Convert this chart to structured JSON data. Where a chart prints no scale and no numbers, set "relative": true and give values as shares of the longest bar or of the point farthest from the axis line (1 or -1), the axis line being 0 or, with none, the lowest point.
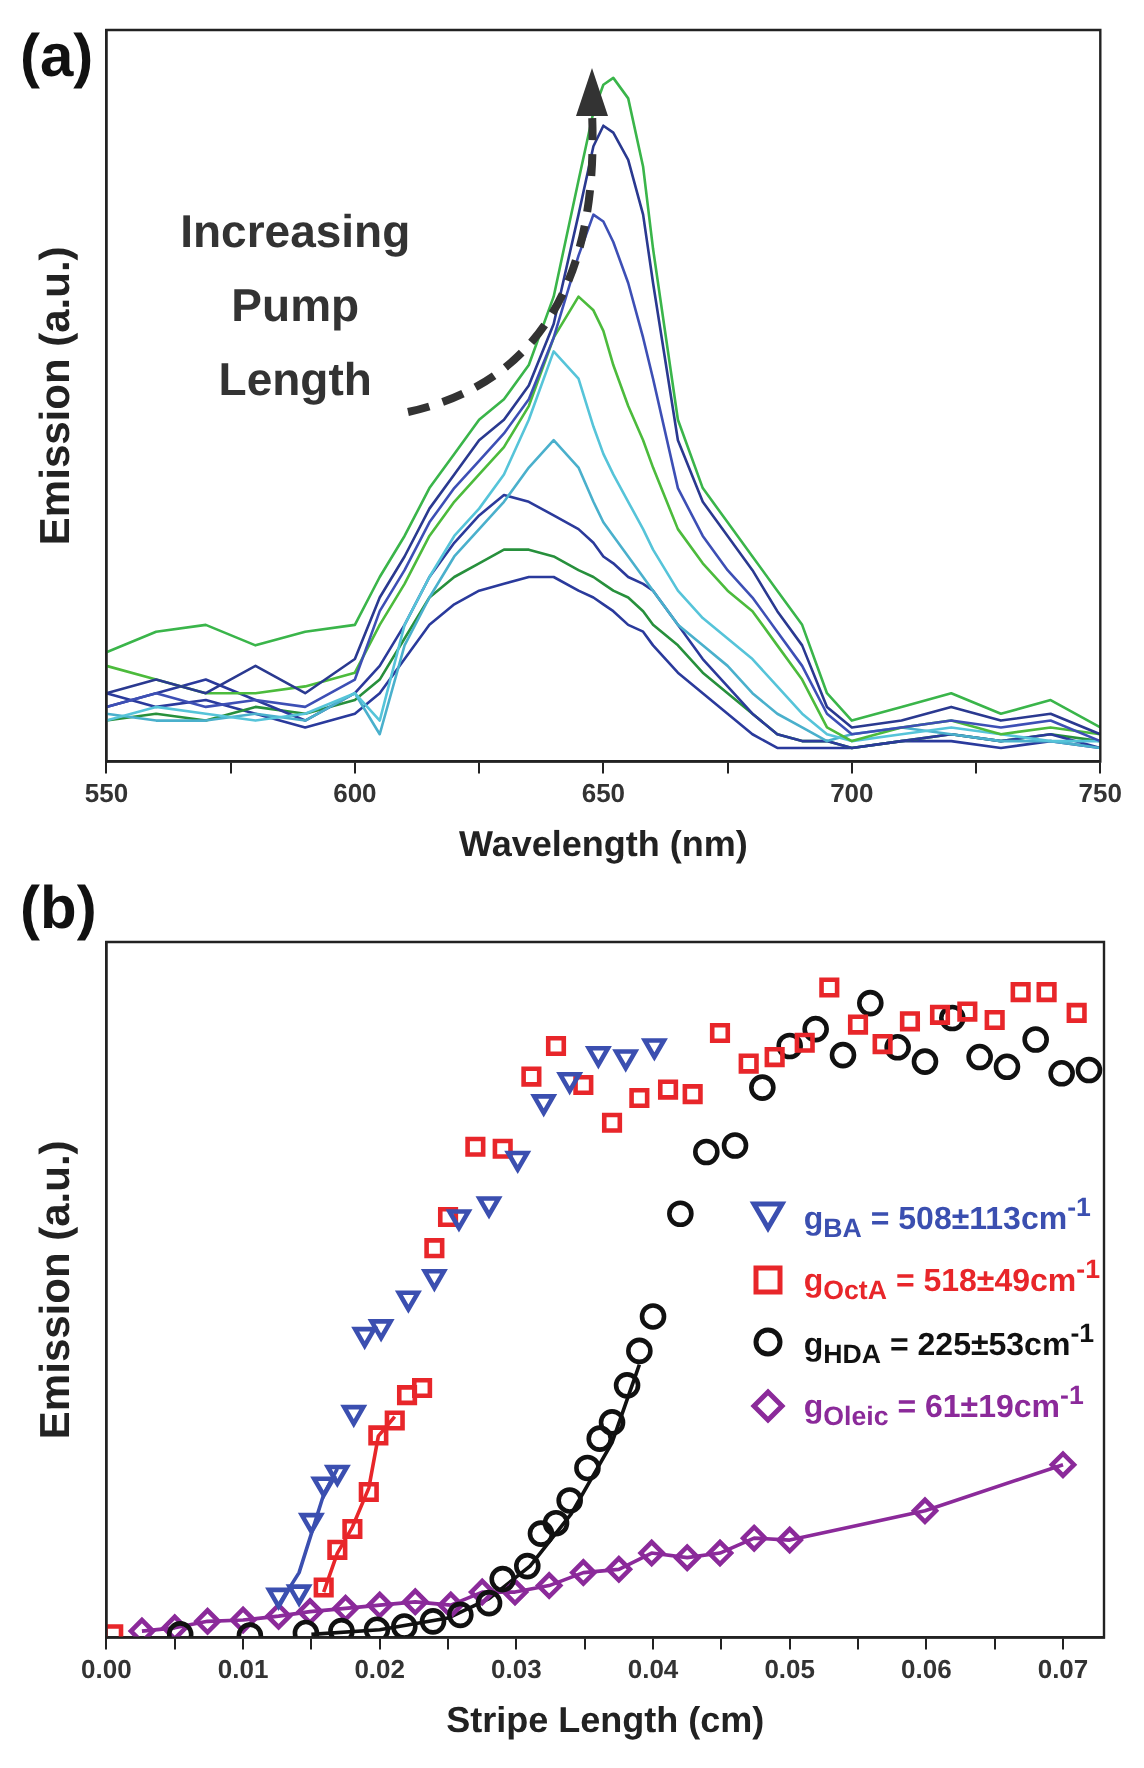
{
  "chart_data": [
    {
      "type": "line",
      "title": "(a)",
      "xlabel": "Wavelength (nm)",
      "ylabel": "Emission (a.u.)",
      "relative": true,
      "grid": false,
      "legend": false,
      "marker": "none",
      "line_style": "solid",
      "annotations": [
        "Increasing Pump Length"
      ],
      "xlim": [
        550,
        750
      ],
      "xticks": [
        550,
        {
          "value": 575,
          "label": null
        },
        600,
        {
          "value": 625,
          "label": null
        },
        650,
        {
          "value": 675,
          "label": null
        },
        700,
        {
          "value": 725,
          "label": null
        },
        750
      ],
      "x": [
        550,
        560,
        570,
        580,
        590,
        600,
        605,
        610,
        615,
        620,
        625,
        630,
        635,
        640,
        645,
        648,
        650,
        652,
        655,
        658,
        660,
        665,
        670,
        675,
        680,
        685,
        690,
        695,
        700,
        710,
        720,
        730,
        740,
        750
      ],
      "series": [
        {
          "color": "#3ab54a",
          "values": [
            0.16,
            0.19,
            0.2,
            0.17,
            0.19,
            0.2,
            0.27,
            0.33,
            0.4,
            0.45,
            0.5,
            0.53,
            0.58,
            0.68,
            0.85,
            0.95,
            0.99,
            1.0,
            0.97,
            0.87,
            0.75,
            0.5,
            0.4,
            0.35,
            0.3,
            0.25,
            0.2,
            0.1,
            0.06,
            0.08,
            0.1,
            0.07,
            0.09,
            0.05
          ]
        },
        {
          "color": "#2a3990",
          "values": [
            0.1,
            0.12,
            0.1,
            0.14,
            0.1,
            0.15,
            0.24,
            0.3,
            0.37,
            0.42,
            0.47,
            0.5,
            0.55,
            0.64,
            0.8,
            0.9,
            0.93,
            0.92,
            0.88,
            0.8,
            0.7,
            0.47,
            0.38,
            0.33,
            0.28,
            0.22,
            0.17,
            0.08,
            0.05,
            0.06,
            0.08,
            0.06,
            0.07,
            0.04
          ]
        },
        {
          "color": "#3d4fb5",
          "values": [
            0.08,
            0.1,
            0.08,
            0.09,
            0.08,
            0.12,
            0.22,
            0.28,
            0.35,
            0.4,
            0.44,
            0.48,
            0.53,
            0.62,
            0.74,
            0.8,
            0.79,
            0.76,
            0.7,
            0.62,
            0.56,
            0.4,
            0.33,
            0.28,
            0.24,
            0.19,
            0.14,
            0.07,
            0.04,
            0.05,
            0.06,
            0.05,
            0.06,
            0.03
          ]
        },
        {
          "color": "#4cbb3c",
          "values": [
            0.14,
            0.12,
            0.1,
            0.1,
            0.11,
            0.13,
            0.2,
            0.26,
            0.33,
            0.38,
            0.42,
            0.46,
            0.52,
            0.62,
            0.68,
            0.66,
            0.63,
            0.58,
            0.52,
            0.47,
            0.43,
            0.34,
            0.29,
            0.25,
            0.22,
            0.17,
            0.12,
            0.05,
            0.03,
            0.05,
            0.06,
            0.04,
            0.05,
            0.04
          ]
        },
        {
          "color": "#56c4d9",
          "values": [
            0.06,
            0.08,
            0.07,
            0.06,
            0.07,
            0.1,
            0.06,
            0.2,
            0.27,
            0.33,
            0.37,
            0.42,
            0.5,
            0.6,
            0.56,
            0.49,
            0.45,
            0.42,
            0.38,
            0.34,
            0.31,
            0.25,
            0.21,
            0.18,
            0.15,
            0.11,
            0.07,
            0.04,
            0.03,
            0.04,
            0.05,
            0.04,
            0.03,
            0.03
          ]
        },
        {
          "color": "#4ab0cc",
          "values": [
            0.07,
            0.06,
            0.06,
            0.07,
            0.06,
            0.1,
            0.04,
            0.17,
            0.24,
            0.3,
            0.34,
            0.38,
            0.43,
            0.47,
            0.43,
            0.38,
            0.35,
            0.33,
            0.3,
            0.27,
            0.25,
            0.2,
            0.17,
            0.14,
            0.1,
            0.07,
            0.05,
            0.03,
            0.04,
            0.05,
            0.04,
            0.03,
            0.03,
            0.02
          ]
        },
        {
          "color": "#2b3a9b",
          "values": [
            0.08,
            0.1,
            0.12,
            0.09,
            0.06,
            0.1,
            0.14,
            0.2,
            0.27,
            0.32,
            0.36,
            0.39,
            0.38,
            0.36,
            0.34,
            0.32,
            0.3,
            0.29,
            0.27,
            0.26,
            0.25,
            0.2,
            0.15,
            0.11,
            0.07,
            0.04,
            0.03,
            0.03,
            0.02,
            0.03,
            0.04,
            0.03,
            0.04,
            0.02
          ]
        },
        {
          "color": "#27903c",
          "values": [
            0.06,
            0.07,
            0.06,
            0.08,
            0.07,
            0.09,
            0.12,
            0.18,
            0.24,
            0.27,
            0.29,
            0.31,
            0.31,
            0.3,
            0.28,
            0.27,
            0.26,
            0.25,
            0.24,
            0.22,
            0.2,
            0.17,
            0.13,
            0.1,
            0.07,
            0.04,
            0.03,
            0.03,
            0.02,
            0.03,
            0.04,
            0.03,
            0.04,
            0.03
          ]
        },
        {
          "color": "#2a3a9c",
          "values": [
            0.1,
            0.08,
            0.09,
            0.07,
            0.05,
            0.07,
            0.1,
            0.15,
            0.2,
            0.23,
            0.25,
            0.26,
            0.27,
            0.27,
            0.25,
            0.24,
            0.23,
            0.22,
            0.2,
            0.19,
            0.17,
            0.13,
            0.1,
            0.07,
            0.04,
            0.02,
            0.02,
            0.02,
            0.02,
            0.03,
            0.03,
            0.02,
            0.03,
            0.02
          ]
        }
      ]
    },
    {
      "type": "scatter",
      "title": "(b)",
      "xlabel": "Stripe Length (cm)",
      "ylabel": "Emission (a.u.)",
      "relative": true,
      "grid": false,
      "legend": "right",
      "line_style": "solid",
      "xlim": [
        0,
        0.073
      ],
      "xticks": [
        {
          "value": 0,
          "label": "0.00"
        },
        {
          "value": 0.005,
          "label": null
        },
        {
          "value": 0.01,
          "label": "0.01"
        },
        {
          "value": 0.015,
          "label": null
        },
        {
          "value": 0.02,
          "label": "0.02"
        },
        {
          "value": 0.025,
          "label": null
        },
        {
          "value": 0.03,
          "label": "0.03"
        },
        {
          "value": 0.035,
          "label": null
        },
        {
          "value": 0.04,
          "label": "0.04"
        },
        {
          "value": 0.045,
          "label": null
        },
        {
          "value": 0.05,
          "label": "0.05"
        },
        {
          "value": 0.055,
          "label": null
        },
        {
          "value": 0.06,
          "label": "0.06"
        },
        {
          "value": 0.065,
          "label": null
        },
        {
          "value": 0.07,
          "label": "0.07"
        }
      ],
      "series": [
        {
          "name": "g$_{BA}$ = 508±113cm$^{-1}$",
          "color": "#3b4fb0",
          "marker": "triangle",
          "x": [
            0.0126,
            0.0141,
            0.015,
            0.0159,
            0.0169,
            0.0181,
            0.0189,
            0.0201,
            0.0221,
            0.024,
            0.0258,
            0.028,
            0.0301,
            0.032,
            0.0339,
            0.036,
            0.038,
            0.0401
          ],
          "values": [
            0.065,
            0.07,
            0.18,
            0.236,
            0.254,
            0.346,
            0.466,
            0.478,
            0.522,
            0.555,
            0.647,
            0.667,
            0.737,
            0.824,
            0.858,
            0.898,
            0.893,
            0.91
          ]
        },
        {
          "name": "g$_{OctA}$ = 518±49cm$^{-1}$",
          "color": "#e8262a",
          "marker": "square",
          "x": [
            0.0005,
            0.0159,
            0.0169,
            0.018,
            0.0192,
            0.0199,
            0.0211,
            0.022,
            0.0231,
            0.024,
            0.025,
            0.027,
            0.029,
            0.0311,
            0.0329,
            0.0349,
            0.037,
            0.039,
            0.0411,
            0.0429,
            0.0449,
            0.047,
            0.0489,
            0.0511,
            0.0529,
            0.055,
            0.0568,
            0.0588,
            0.061,
            0.063,
            0.065,
            0.0669,
            0.0688,
            0.071
          ],
          "values": [
            0.005,
            0.077,
            0.135,
            0.167,
            0.224,
            0.311,
            0.334,
            0.373,
            0.384,
            0.599,
            0.647,
            0.755,
            0.752,
            0.863,
            0.91,
            0.85,
            0.792,
            0.83,
            0.843,
            0.836,
            0.93,
            0.883,
            0.893,
            0.915,
            1.0,
            0.943,
            0.913,
            0.948,
            0.958,
            0.963,
            0.95,
            0.993,
            0.993,
            0.961
          ]
        },
        {
          "name": "g$_{HDA}$ = 225±53cm$^{-1}$",
          "color": "#111111",
          "marker": "circle",
          "x": [
            0.0054,
            0.0105,
            0.0146,
            0.0172,
            0.0198,
            0.0218,
            0.0239,
            0.0259,
            0.028,
            0.029,
            0.0308,
            0.0318,
            0.0329,
            0.0339,
            0.0352,
            0.0361,
            0.037,
            0.0381,
            0.039,
            0.04,
            0.042,
            0.0439,
            0.046,
            0.048,
            0.05,
            0.0519,
            0.0539,
            0.0559,
            0.0579,
            0.0599,
            0.0619,
            0.0639,
            0.0659,
            0.068,
            0.0699,
            0.0719
          ],
          "values": [
            0.005,
            0.003,
            0.007,
            0.01,
            0.012,
            0.017,
            0.025,
            0.035,
            0.053,
            0.09,
            0.11,
            0.16,
            0.176,
            0.211,
            0.261,
            0.306,
            0.331,
            0.388,
            0.441,
            0.494,
            0.652,
            0.747,
            0.757,
            0.846,
            0.91,
            0.936,
            0.896,
            0.976,
            0.908,
            0.886,
            0.953,
            0.893,
            0.878,
            0.92,
            0.868,
            0.873
          ]
        },
        {
          "name": "g$_{Oleic}$ = 61±19cm$^{-1}$",
          "color": "#8b2a9a",
          "type": "line",
          "marker": "diamond",
          "x": [
            0.0026,
            0.005,
            0.0074,
            0.01,
            0.0126,
            0.0149,
            0.0175,
            0.02,
            0.0226,
            0.0252,
            0.0275,
            0.0299,
            0.0324,
            0.0349,
            0.0375,
            0.0399,
            0.0425,
            0.0449,
            0.0474,
            0.05,
            0.0599,
            0.07
          ],
          "values": [
            0.01,
            0.015,
            0.025,
            0.027,
            0.033,
            0.04,
            0.045,
            0.05,
            0.055,
            0.05,
            0.07,
            0.07,
            0.08,
            0.1,
            0.105,
            0.13,
            0.123,
            0.13,
            0.153,
            0.15,
            0.195,
            0.266
          ]
        },
        {
          "color": "#3b4fb0",
          "type": "line",
          "marker": "none",
          "x": [
            0.0126,
            0.0141,
            0.015,
            0.0159,
            0.0169
          ],
          "values": [
            0.05,
            0.1,
            0.16,
            0.22,
            0.26
          ]
        },
        {
          "color": "#e8262a",
          "type": "line",
          "marker": "none",
          "x": [
            0.0159,
            0.0169,
            0.018,
            0.0192,
            0.0199,
            0.0211
          ],
          "values": [
            0.07,
            0.13,
            0.17,
            0.23,
            0.31,
            0.34
          ]
        },
        {
          "color": "#111111",
          "type": "line",
          "marker": "none",
          "x": [
            0.015,
            0.02,
            0.025,
            0.028,
            0.031,
            0.034,
            0.037,
            0.039
          ],
          "values": [
            0.005,
            0.012,
            0.03,
            0.06,
            0.11,
            0.19,
            0.3,
            0.42
          ]
        }
      ]
    }
  ]
}
